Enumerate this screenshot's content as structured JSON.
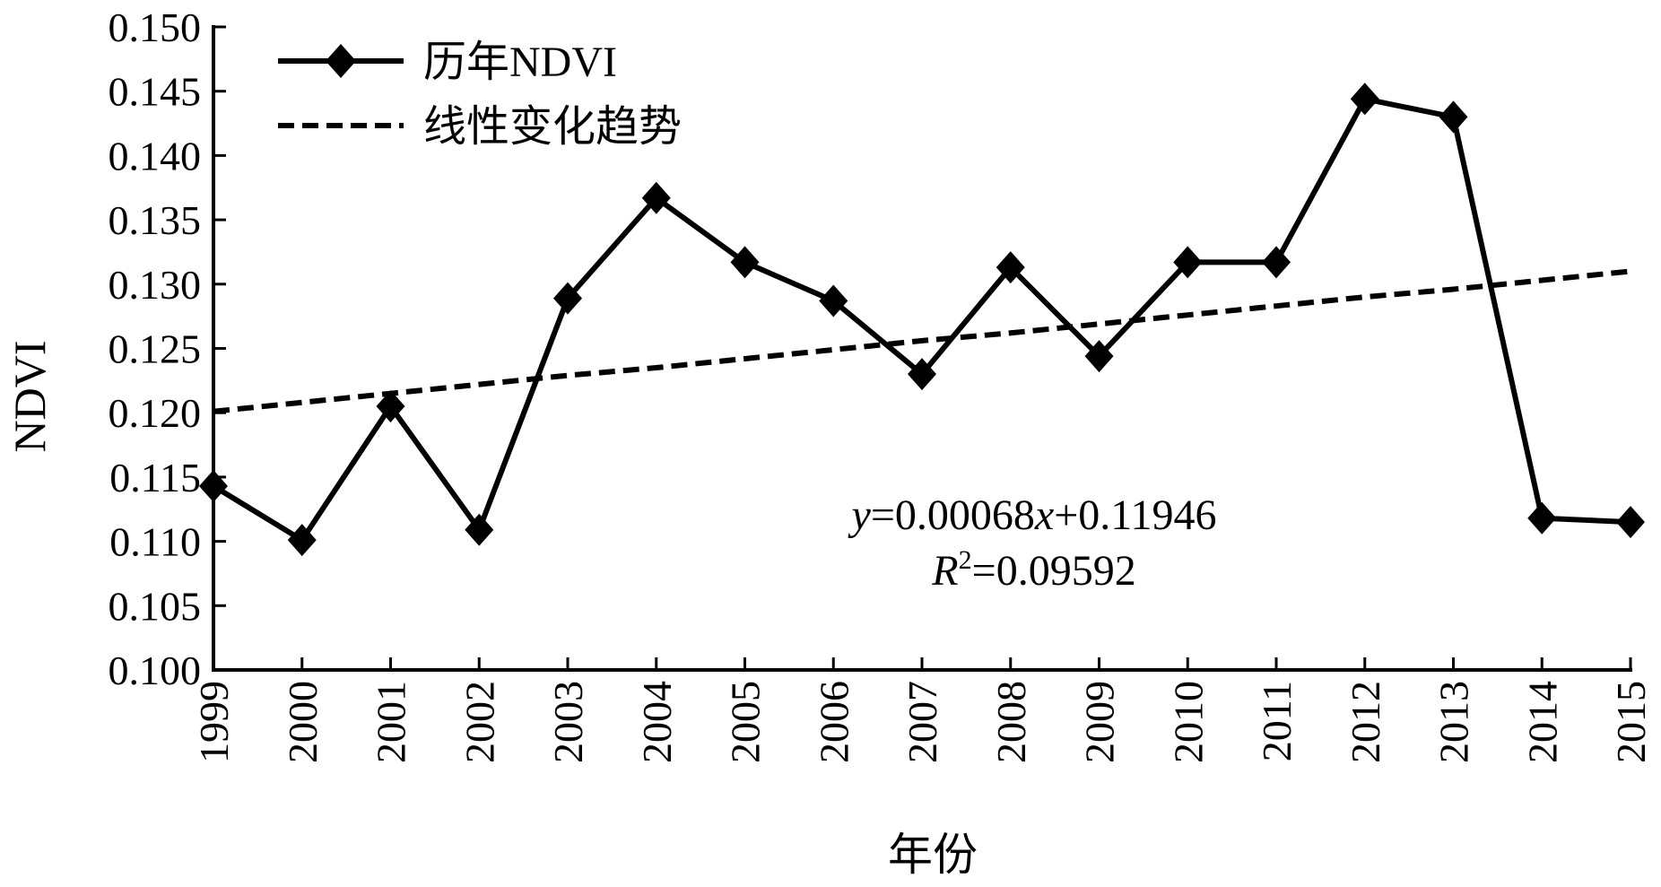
{
  "chart_data": {
    "type": "line",
    "xlabel": "年份",
    "ylabel": "NDVI",
    "ylim": [
      0.1,
      0.15
    ],
    "y_tick_step": 0.005,
    "x": [
      "1999",
      "2000",
      "2001",
      "2002",
      "2003",
      "2004",
      "2005",
      "2006",
      "2007",
      "2008",
      "2009",
      "2010",
      "2011",
      "2012",
      "2013",
      "2014",
      "2015"
    ],
    "y_tick_labels": [
      "0.100",
      "0.105",
      "0.110",
      "0.115",
      "0.120",
      "0.125",
      "0.130",
      "0.135",
      "0.140",
      "0.145",
      "0.150"
    ],
    "grid": false,
    "legend_position": "top-left",
    "series": [
      {
        "name": "历年NDVI",
        "style": "solid-line-diamond-markers",
        "color": "#000000",
        "values": [
          0.1143,
          0.1101,
          0.1205,
          0.1109,
          0.1289,
          0.1367,
          0.1317,
          0.1287,
          0.123,
          0.1313,
          0.1244,
          0.1317,
          0.1317,
          0.1444,
          0.143,
          0.1118,
          0.1115
        ]
      },
      {
        "name": "线性变化趋势",
        "style": "dashed-line",
        "color": "#000000",
        "slope": 0.00068,
        "intercept": 0.11946,
        "values": [
          0.1201,
          0.1208,
          0.1215,
          0.1222,
          0.1229,
          0.1235,
          0.1242,
          0.1249,
          0.1256,
          0.1262,
          0.1269,
          0.1276,
          0.1283,
          0.129,
          0.1296,
          0.1303,
          0.131
        ]
      }
    ],
    "annotations": {
      "equation_y": "y",
      "equation_rest": "=0.00068",
      "equation_x": "x",
      "equation_tail": "+0.11946",
      "r2_r": "R",
      "r2_sup": "2",
      "r2_value": "=0.09592"
    }
  }
}
